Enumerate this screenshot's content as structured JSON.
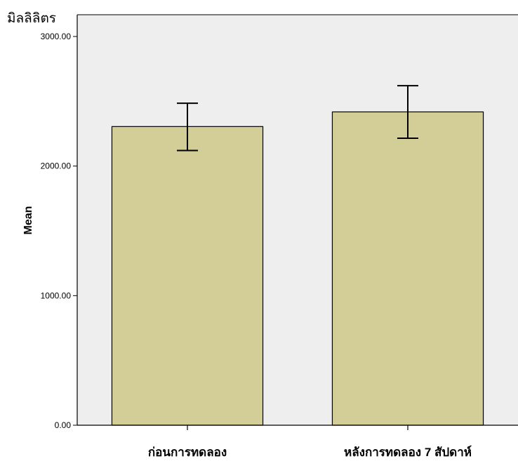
{
  "chart_data": {
    "type": "bar",
    "unit_label": "มิลลิลิตร",
    "ylabel": "Mean",
    "xlabel": "",
    "categories": [
      "ก่อนการทดลอง",
      "หลังการทดลอง 7 สัปดาห์"
    ],
    "values": [
      2305,
      2418
    ],
    "error_bars": [
      {
        "low": 2120,
        "high": 2485
      },
      {
        "low": 2215,
        "high": 2620
      }
    ],
    "ylim": [
      0,
      3000
    ],
    "yticks": [
      "0.00",
      "1000.00",
      "2000.00",
      "3000.00"
    ],
    "ytick_values": [
      0,
      1000,
      2000,
      3000
    ],
    "grid": false,
    "colors": {
      "bar_fill": "#D3CD98",
      "bar_stroke": "#000000",
      "plot_background": "#EEEEEE"
    }
  }
}
